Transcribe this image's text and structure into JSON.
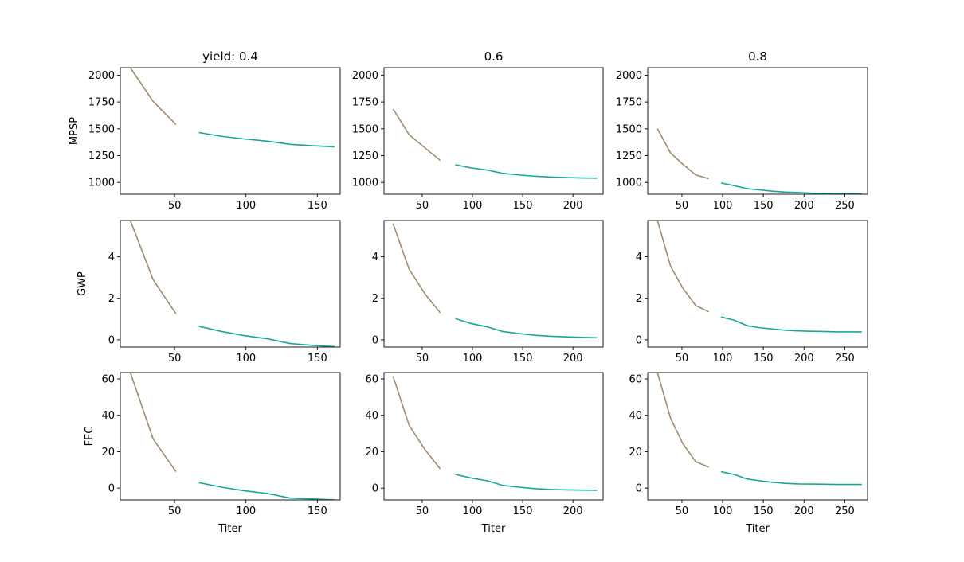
{
  "chart_data": {
    "type": "line",
    "grid": false,
    "colors": {
      "low_titer": "#a08b72",
      "high_titer": "#1aa596"
    },
    "columns": [
      {
        "title": "yield: 0.4",
        "xlim": [
          12,
          166
        ],
        "xticks": [
          50,
          100,
          150
        ]
      },
      {
        "title": "0.6",
        "xlim": [
          12,
          230
        ],
        "xticks": [
          50,
          100,
          150,
          200
        ]
      },
      {
        "title": "0.8",
        "xlim": [
          8,
          278
        ],
        "xticks": [
          50,
          100,
          150,
          200,
          250
        ]
      }
    ],
    "rows": [
      {
        "ylabel": "MPSP",
        "ylim": [
          890,
          2070
        ],
        "yticks": [
          1000,
          1250,
          1500,
          1750,
          2000
        ]
      },
      {
        "ylabel": "GWP",
        "ylim": [
          -0.35,
          5.75
        ],
        "yticks": [
          0,
          2,
          4
        ]
      },
      {
        "ylabel": "FEC",
        "ylim": [
          -6.5,
          63.5
        ],
        "yticks": [
          0,
          20,
          40,
          60
        ]
      }
    ],
    "xlabel": "Titer",
    "panels": [
      [
        {
          "series": [
            {
              "color": "low_titer",
              "x": [
                19,
                35,
                51
              ],
              "y": [
                2070,
                1755,
                1540
              ]
            },
            {
              "color": "high_titer",
              "x": [
                67,
                83,
                99,
                115,
                131,
                147,
                162
              ],
              "y": [
                1465,
                1430,
                1405,
                1385,
                1355,
                1342,
                1332
              ]
            }
          ]
        },
        {
          "series": [
            {
              "color": "low_titer",
              "x": [
                21,
                37,
                53,
                68
              ],
              "y": [
                1685,
                1445,
                1320,
                1205
              ]
            },
            {
              "color": "high_titer",
              "x": [
                83,
                99,
                115,
                130,
                146,
                162,
                178,
                194,
                209,
                224
              ],
              "y": [
                1165,
                1135,
                1115,
                1085,
                1070,
                1058,
                1050,
                1045,
                1042,
                1040
              ]
            }
          ]
        },
        {
          "series": [
            {
              "color": "low_titer",
              "x": [
                20,
                36,
                51,
                67,
                83
              ],
              "y": [
                1500,
                1275,
                1170,
                1070,
                1035
              ]
            },
            {
              "color": "high_titer",
              "x": [
                98,
                114,
                130,
                146,
                161,
                177,
                193,
                209,
                225,
                240,
                256,
                271
              ],
              "y": [
                995,
                970,
                942,
                930,
                918,
                910,
                905,
                900,
                898,
                895,
                893,
                892
              ]
            }
          ]
        }
      ],
      [
        {
          "series": [
            {
              "color": "low_titer",
              "x": [
                19,
                35,
                51
              ],
              "y": [
                5.75,
                2.9,
                1.25
              ]
            },
            {
              "color": "high_titer",
              "x": [
                67,
                83,
                99,
                115,
                131,
                147,
                162
              ],
              "y": [
                0.65,
                0.4,
                0.2,
                0.05,
                -0.18,
                -0.27,
                -0.33
              ]
            }
          ]
        },
        {
          "series": [
            {
              "color": "low_titer",
              "x": [
                21,
                37,
                53,
                68
              ],
              "y": [
                5.6,
                3.4,
                2.2,
                1.3
              ]
            },
            {
              "color": "high_titer",
              "x": [
                83,
                99,
                115,
                130,
                146,
                162,
                178,
                194,
                209,
                224
              ],
              "y": [
                1.02,
                0.78,
                0.62,
                0.4,
                0.3,
                0.22,
                0.17,
                0.14,
                0.12,
                0.1
              ]
            }
          ]
        },
        {
          "series": [
            {
              "color": "low_titer",
              "x": [
                20,
                36,
                51,
                67,
                83
              ],
              "y": [
                5.75,
                3.55,
                2.5,
                1.65,
                1.35
              ]
            },
            {
              "color": "high_titer",
              "x": [
                98,
                114,
                130,
                146,
                161,
                177,
                193,
                209,
                225,
                240,
                256,
                271
              ],
              "y": [
                1.1,
                0.95,
                0.68,
                0.58,
                0.52,
                0.46,
                0.43,
                0.41,
                0.4,
                0.38,
                0.38,
                0.38
              ]
            }
          ]
        }
      ],
      [
        {
          "series": [
            {
              "color": "low_titer",
              "x": [
                19,
                35,
                51
              ],
              "y": [
                63.5,
                27,
                9
              ]
            },
            {
              "color": "high_titer",
              "x": [
                67,
                83,
                99,
                115,
                131,
                147,
                162
              ],
              "y": [
                3,
                0.5,
                -1.5,
                -3,
                -5.5,
                -6,
                -6.5
              ]
            }
          ]
        },
        {
          "series": [
            {
              "color": "low_titer",
              "x": [
                21,
                37,
                53,
                68
              ],
              "y": [
                61.5,
                34.5,
                21,
                10.5
              ]
            },
            {
              "color": "high_titer",
              "x": [
                83,
                99,
                115,
                130,
                146,
                162,
                178,
                194,
                209,
                224
              ],
              "y": [
                7.5,
                5.5,
                4,
                1.5,
                0.5,
                -0.3,
                -0.8,
                -1,
                -1.1,
                -1.2
              ]
            }
          ]
        },
        {
          "series": [
            {
              "color": "low_titer",
              "x": [
                20,
                36,
                51,
                67,
                83
              ],
              "y": [
                63.5,
                38.5,
                24.5,
                14.5,
                11.5
              ]
            },
            {
              "color": "high_titer",
              "x": [
                98,
                114,
                130,
                146,
                161,
                177,
                193,
                209,
                225,
                240,
                256,
                271
              ],
              "y": [
                9,
                7.5,
                5,
                4,
                3.2,
                2.6,
                2.3,
                2.2,
                2.1,
                2,
                2,
                2
              ]
            }
          ]
        }
      ]
    ]
  }
}
